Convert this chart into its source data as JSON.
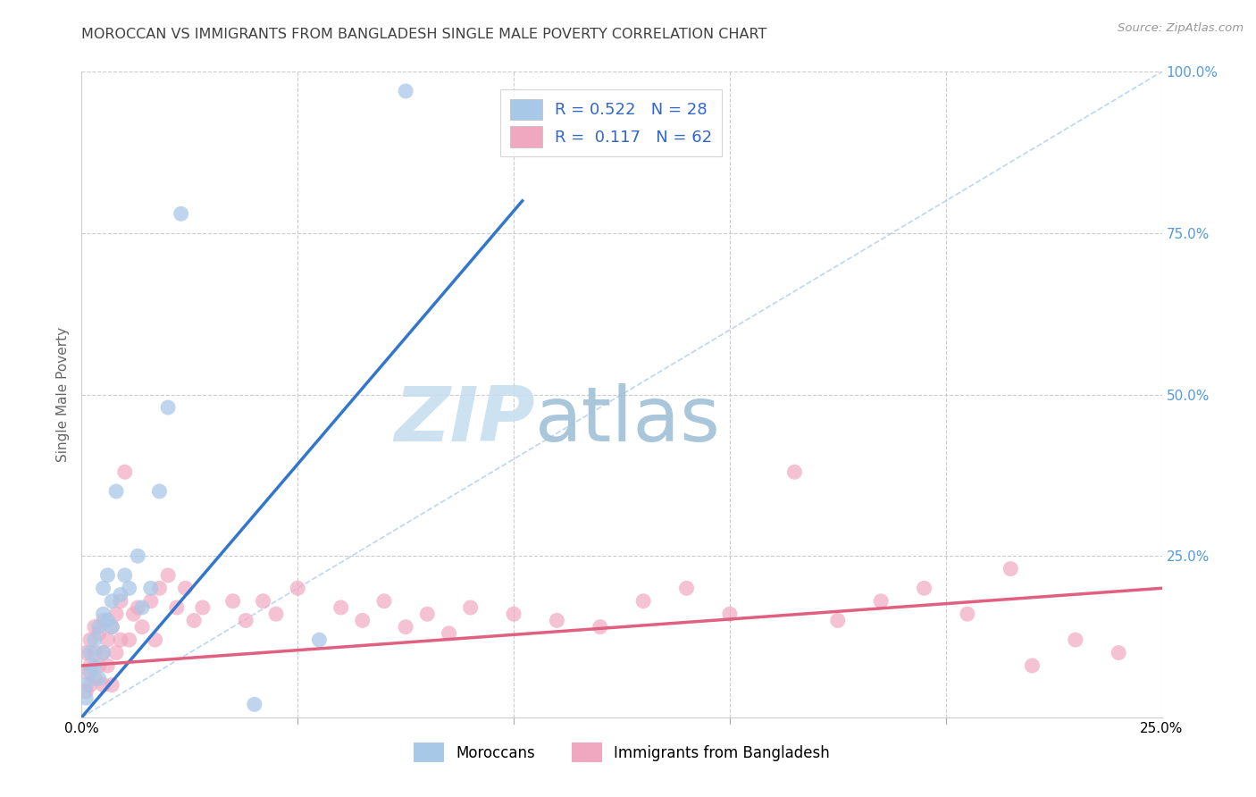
{
  "title": "MOROCCAN VS IMMIGRANTS FROM BANGLADESH SINGLE MALE POVERTY CORRELATION CHART",
  "source": "Source: ZipAtlas.com",
  "ylabel": "Single Male Poverty",
  "x_tick_labels": [
    "0.0%",
    "25.0%"
  ],
  "x_lim": [
    0.0,
    0.25
  ],
  "y_lim": [
    0.0,
    1.0
  ],
  "legend_corr_labels": [
    "R = 0.522   N = 28",
    "R =  0.117   N = 62"
  ],
  "legend_bottom_labels": [
    "Moroccans",
    "Immigrants from Bangladesh"
  ],
  "moroccan_blue_scatter": "#a8c8e8",
  "bangladesh_pink_scatter": "#f0a8c0",
  "regression_blue": "#3377cc",
  "regression_pink": "#e06080",
  "ref_line_color": "#aaccee",
  "grid_color": "#cccccc",
  "title_color": "#404040",
  "source_color": "#999999",
  "right_axis_color": "#5599dd",
  "watermark_text": "ZIPatlas",
  "watermark_color": "#ddeef8",
  "blue_line_x": [
    0.0,
    0.102
  ],
  "blue_line_y": [
    0.0,
    0.8
  ],
  "pink_line_x": [
    0.0,
    0.25
  ],
  "pink_line_y": [
    0.08,
    0.2
  ],
  "ref_line_x": [
    0.0,
    0.25
  ],
  "ref_line_y": [
    0.0,
    1.0
  ],
  "moroccan_x": [
    0.001,
    0.001,
    0.002,
    0.002,
    0.003,
    0.003,
    0.004,
    0.004,
    0.005,
    0.005,
    0.005,
    0.006,
    0.006,
    0.007,
    0.007,
    0.008,
    0.009,
    0.01,
    0.011,
    0.013,
    0.014,
    0.016,
    0.018,
    0.02,
    0.023,
    0.04,
    0.055,
    0.075
  ],
  "moroccan_y": [
    0.03,
    0.05,
    0.07,
    0.1,
    0.08,
    0.12,
    0.06,
    0.14,
    0.1,
    0.16,
    0.2,
    0.15,
    0.22,
    0.18,
    0.14,
    0.35,
    0.19,
    0.22,
    0.2,
    0.25,
    0.17,
    0.2,
    0.35,
    0.48,
    0.78,
    0.02,
    0.12,
    0.97
  ],
  "bangladesh_x": [
    0.001,
    0.001,
    0.001,
    0.002,
    0.002,
    0.002,
    0.003,
    0.003,
    0.003,
    0.004,
    0.004,
    0.005,
    0.005,
    0.005,
    0.006,
    0.006,
    0.007,
    0.007,
    0.008,
    0.008,
    0.009,
    0.009,
    0.01,
    0.011,
    0.012,
    0.013,
    0.014,
    0.016,
    0.017,
    0.018,
    0.02,
    0.022,
    0.024,
    0.026,
    0.028,
    0.035,
    0.038,
    0.042,
    0.045,
    0.05,
    0.06,
    0.065,
    0.07,
    0.075,
    0.08,
    0.085,
    0.09,
    0.1,
    0.11,
    0.12,
    0.13,
    0.14,
    0.15,
    0.165,
    0.175,
    0.185,
    0.195,
    0.205,
    0.215,
    0.22,
    0.23,
    0.24
  ],
  "bangladesh_y": [
    0.04,
    0.07,
    0.1,
    0.05,
    0.08,
    0.12,
    0.06,
    0.1,
    0.14,
    0.08,
    0.13,
    0.05,
    0.1,
    0.15,
    0.08,
    0.12,
    0.05,
    0.14,
    0.1,
    0.16,
    0.12,
    0.18,
    0.38,
    0.12,
    0.16,
    0.17,
    0.14,
    0.18,
    0.12,
    0.2,
    0.22,
    0.17,
    0.2,
    0.15,
    0.17,
    0.18,
    0.15,
    0.18,
    0.16,
    0.2,
    0.17,
    0.15,
    0.18,
    0.14,
    0.16,
    0.13,
    0.17,
    0.16,
    0.15,
    0.14,
    0.18,
    0.2,
    0.16,
    0.38,
    0.15,
    0.18,
    0.2,
    0.16,
    0.23,
    0.08,
    0.12,
    0.1
  ]
}
